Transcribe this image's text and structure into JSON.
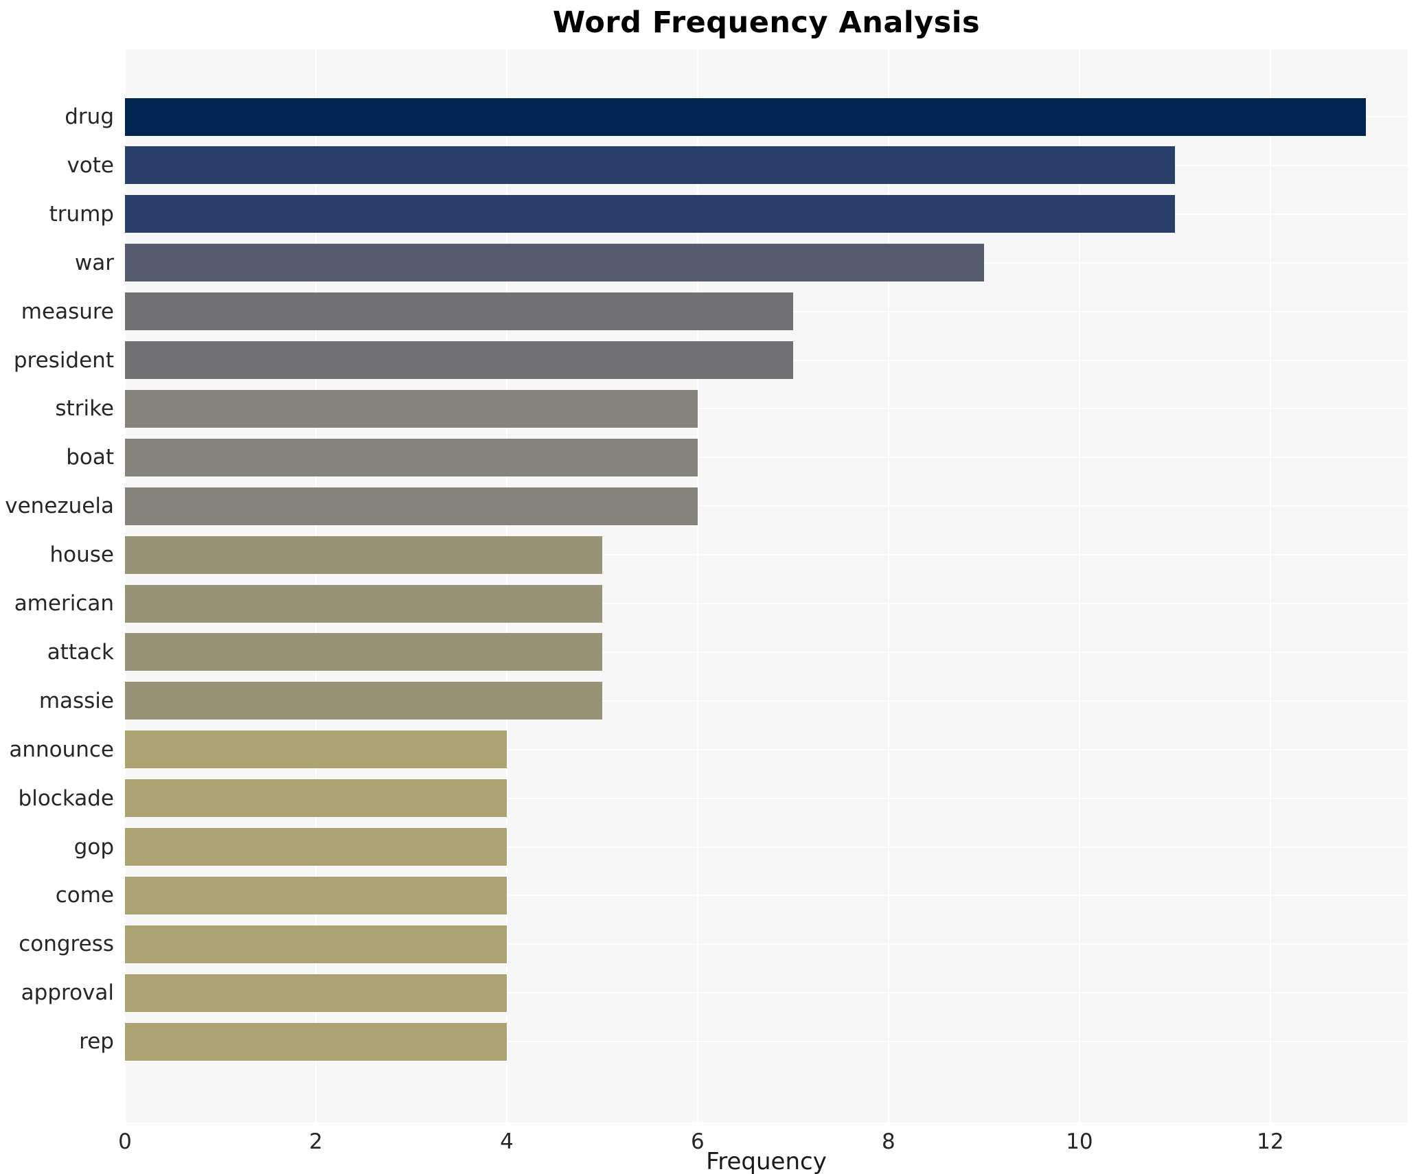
{
  "chart_data": {
    "type": "bar",
    "orientation": "horizontal",
    "title": "Word Frequency Analysis",
    "xlabel": "Frequency",
    "ylabel": "",
    "categories": [
      "drug",
      "vote",
      "trump",
      "war",
      "measure",
      "president",
      "strike",
      "boat",
      "venezuela",
      "house",
      "american",
      "attack",
      "massie",
      "announce",
      "blockade",
      "gop",
      "come",
      "congress",
      "approval",
      "rep"
    ],
    "values": [
      13,
      11,
      11,
      9,
      7,
      7,
      6,
      6,
      6,
      5,
      5,
      5,
      5,
      4,
      4,
      4,
      4,
      4,
      4,
      4
    ],
    "bar_colors": [
      "#00234f",
      "#2a3e6a",
      "#2a3e6a",
      "#555c6e",
      "#717173",
      "#717173",
      "#86837a",
      "#86837a",
      "#86837a",
      "#989377",
      "#989377",
      "#989377",
      "#989377",
      "#aca372",
      "#aca372",
      "#aca372",
      "#aca372",
      "#aca372",
      "#aca372",
      "#aca372"
    ],
    "xticks": [
      0,
      2,
      4,
      6,
      8,
      10,
      12
    ],
    "xlim": [
      0,
      13.44
    ],
    "grid": true,
    "legend": "none",
    "colormap": "cividis",
    "plot_background": "#f7f7f7",
    "grid_color": "#ffffff"
  }
}
